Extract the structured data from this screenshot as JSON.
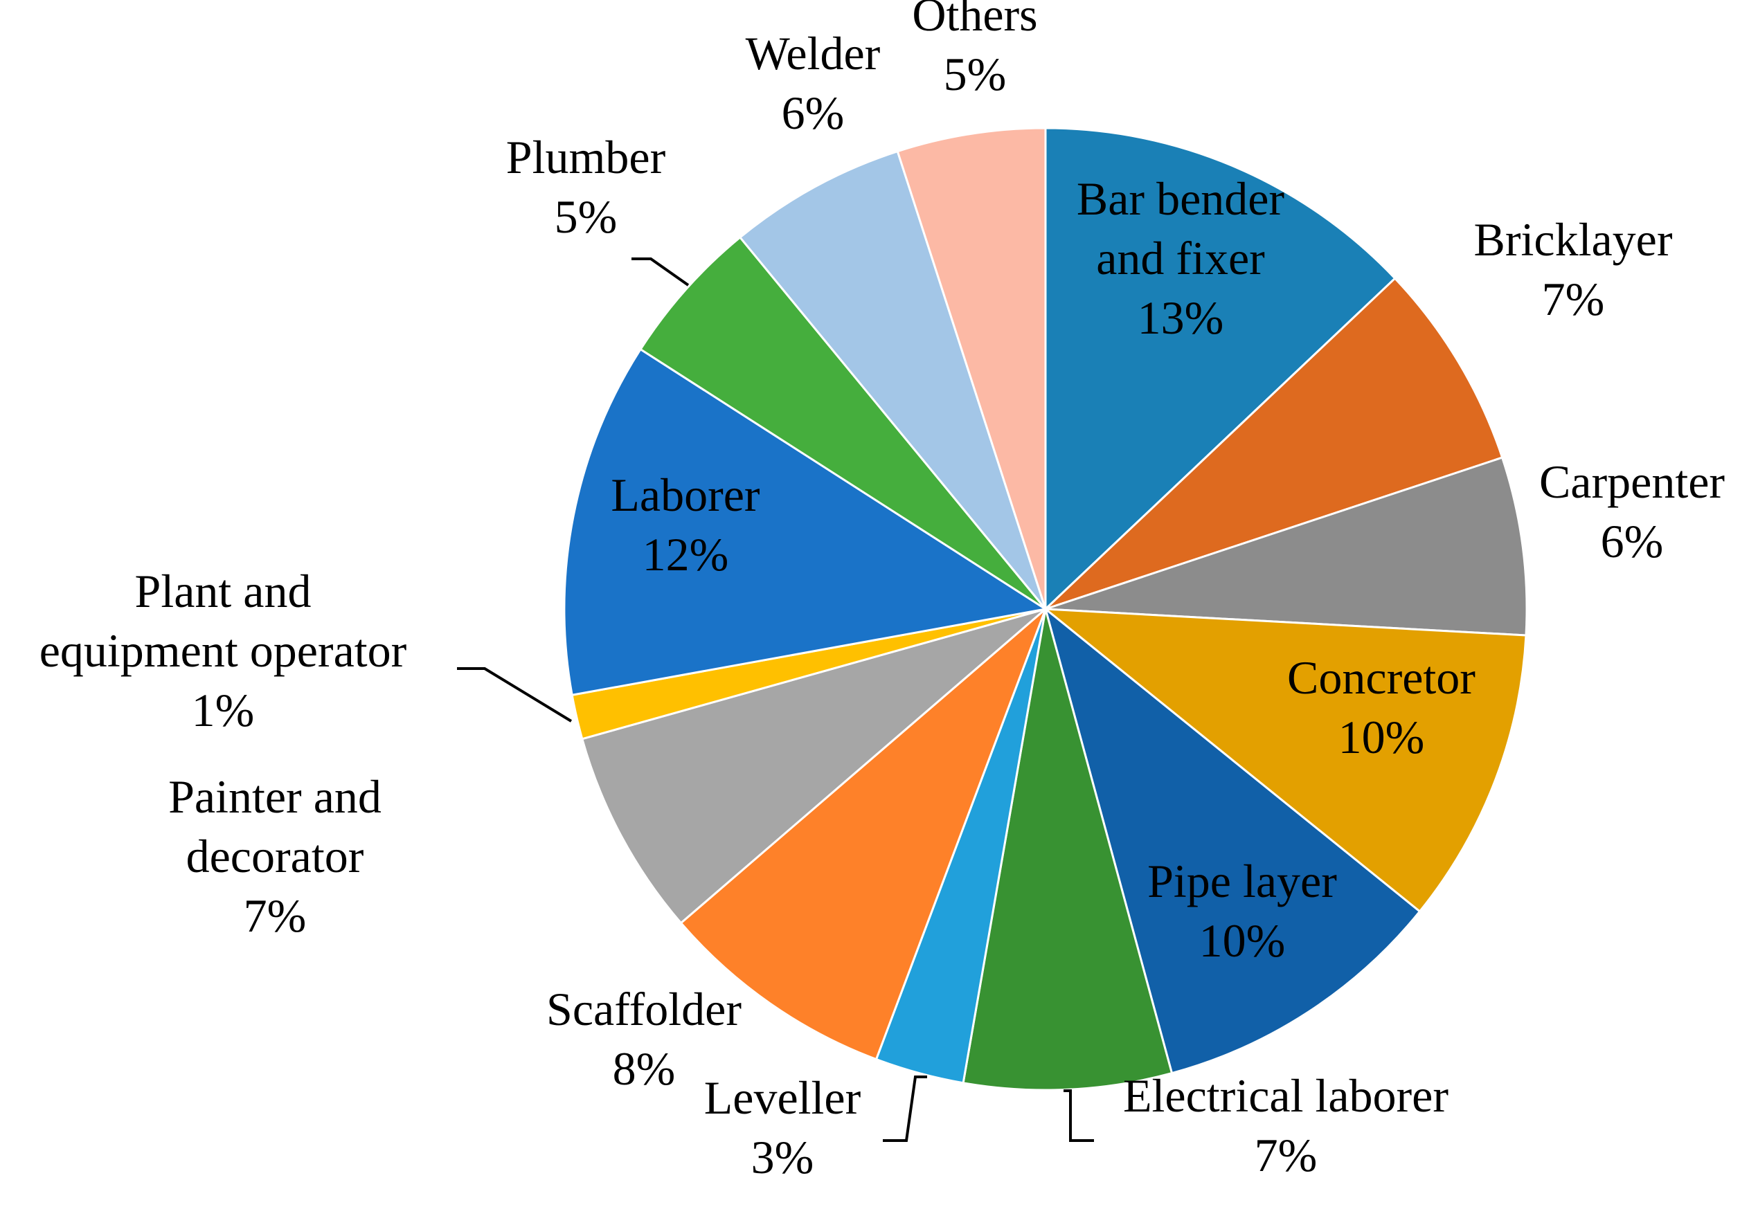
{
  "chart_data": {
    "type": "pie",
    "start_angle_deg": 0,
    "direction": "clockwise",
    "slices": [
      {
        "label": "Bar bender and fixer",
        "label_lines": [
          "Bar bender",
          "and fixer"
        ],
        "value": 13,
        "value_text": "13%",
        "color": "#1A80B6",
        "label_position": "inside"
      },
      {
        "label": "Bricklayer",
        "label_lines": [
          "Bricklayer"
        ],
        "value": 7,
        "value_text": "7%",
        "color": "#DE6A1F",
        "label_position": "outside"
      },
      {
        "label": "Carpenter",
        "label_lines": [
          "Carpenter"
        ],
        "value": 6,
        "value_text": "6%",
        "color": "#8C8C8C",
        "label_position": "outside"
      },
      {
        "label": "Concretor",
        "label_lines": [
          "Concretor"
        ],
        "value": 10,
        "value_text": "10%",
        "color": "#E3A000",
        "label_position": "inside"
      },
      {
        "label": "Pipe layer",
        "label_lines": [
          "Pipe layer"
        ],
        "value": 10,
        "value_text": "10%",
        "color": "#1160A8",
        "label_position": "inside"
      },
      {
        "label": "Electrical laborer",
        "label_lines": [
          "Electrical laborer"
        ],
        "value": 7,
        "value_text": "7%",
        "color": "#389232",
        "label_position": "outside"
      },
      {
        "label": "Leveller",
        "label_lines": [
          "Leveller"
        ],
        "value": 3,
        "value_text": "3%",
        "color": "#21A0DB",
        "label_position": "outside"
      },
      {
        "label": "Scaffolder",
        "label_lines": [
          "Scaffolder"
        ],
        "value": 8,
        "value_text": "8%",
        "color": "#FE8129",
        "label_position": "outside"
      },
      {
        "label": "Painter and decorator",
        "label_lines": [
          "Painter and",
          "decorator"
        ],
        "value": 7,
        "value_text": "7%",
        "color": "#A6A6A6",
        "label_position": "outside"
      },
      {
        "label": "Plant and equipment operator",
        "label_lines": [
          "Plant and",
          "equipment operator"
        ],
        "value": 1.5,
        "value_text": "1%",
        "color": "#FFC000",
        "label_position": "outside"
      },
      {
        "label": "Laborer",
        "label_lines": [
          "Laborer"
        ],
        "value": 12,
        "value_text": "12%",
        "color": "#1A73C8",
        "label_position": "inside"
      },
      {
        "label": "Plumber",
        "label_lines": [
          "Plumber"
        ],
        "value": 5,
        "value_text": "5%",
        "color": "#45AE3D",
        "label_position": "outside"
      },
      {
        "label": "Welder",
        "label_lines": [
          "Welder"
        ],
        "value": 6,
        "value_text": "6%",
        "color": "#A3C6E7",
        "label_position": "outside"
      },
      {
        "label": "Others",
        "label_lines": [
          "Others"
        ],
        "value": 5,
        "value_text": "5%",
        "color": "#FCB9A5",
        "label_position": "outside"
      }
    ]
  }
}
